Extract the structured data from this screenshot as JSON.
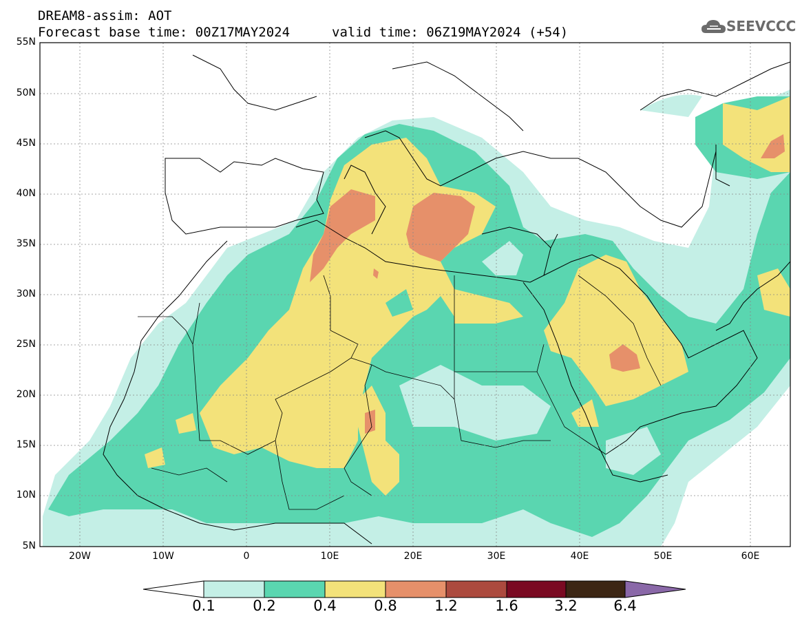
{
  "header": {
    "title_line1": "DREAM8-assim: AOT",
    "title_line2": "Forecast base time: 00Z17MAY2024",
    "valid_time": "valid time: 06Z19MAY2024 (+54)",
    "logo_text": "SEEVCCC",
    "logo_icon": "cloud-icon"
  },
  "axes": {
    "lat_labels": [
      "55N",
      "50N",
      "45N",
      "40N",
      "35N",
      "30N",
      "25N",
      "20N",
      "15N",
      "10N",
      "5N"
    ],
    "lon_labels": [
      "20W",
      "10W",
      "0",
      "10E",
      "20E",
      "30E",
      "40E",
      "50E",
      "60E"
    ],
    "lon_range": [
      -25,
      65
    ],
    "lat_range": [
      5,
      55
    ]
  },
  "colorbar": {
    "labels": [
      "0.1",
      "0.2",
      "0.4",
      "0.8",
      "1.2",
      "1.6",
      "3.2",
      "6.4"
    ],
    "colors": [
      "#ffffff",
      "#c4efe6",
      "#5ad6b0",
      "#f3e27a",
      "#e6906a",
      "#ac4a3e",
      "#7a0a22",
      "#3c2614",
      "#8a68a8"
    ]
  },
  "palette": {
    "low": "#c4efe6",
    "mid": "#5ad6b0",
    "high": "#f3e27a",
    "vhigh": "#e6906a"
  }
}
